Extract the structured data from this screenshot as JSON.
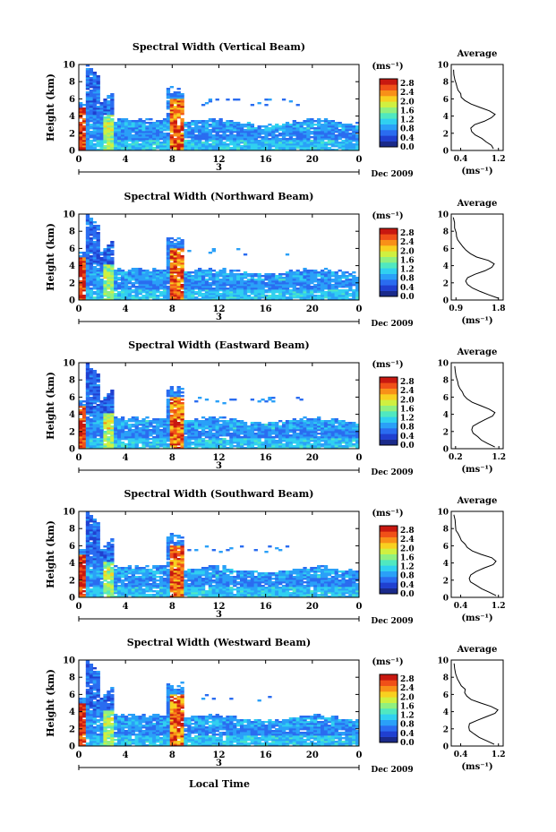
{
  "figure": {
    "xlabel": "Local Time",
    "date_label": "Dec 2009",
    "day_label": "3",
    "ylabel": "Height (km)",
    "colorbar_unit": "(ms⁻¹)",
    "avg_title": "Average",
    "avg_xlabel": "(ms⁻¹)"
  },
  "chart_data": [
    {
      "type": "heatmap",
      "title": "Spectral Width (Vertical Beam)",
      "xlim": [
        0,
        24
      ],
      "ylim": [
        0,
        10
      ],
      "x_ticks": [
        "0",
        "4",
        "8",
        "12",
        "16",
        "20",
        "0"
      ],
      "y_ticks": [
        "0",
        "2",
        "4",
        "6",
        "8",
        "10"
      ],
      "colorbar": {
        "ticks": [
          "0.0",
          "0.4",
          "0.8",
          "1.2",
          "1.6",
          "2.0",
          "2.4",
          "2.8"
        ],
        "range": [
          0,
          3.0
        ]
      },
      "average": {
        "x_ticks": [
          "0.4",
          "1.2"
        ],
        "xlim": [
          0.2,
          1.3
        ],
        "y_ticks": [
          "0",
          "2",
          "4",
          "6",
          "8",
          "10"
        ],
        "profile": [
          [
            1.1,
            0.2
          ],
          [
            1.05,
            0.6
          ],
          [
            0.95,
            1.0
          ],
          [
            0.85,
            1.4
          ],
          [
            0.72,
            1.8
          ],
          [
            0.62,
            2.2
          ],
          [
            0.6,
            2.6
          ],
          [
            0.7,
            3.0
          ],
          [
            0.9,
            3.4
          ],
          [
            1.05,
            3.8
          ],
          [
            1.12,
            4.2
          ],
          [
            1.0,
            4.6
          ],
          [
            0.8,
            5.0
          ],
          [
            0.62,
            5.4
          ],
          [
            0.5,
            5.8
          ],
          [
            0.42,
            6.2
          ],
          [
            0.4,
            6.6
          ],
          [
            0.35,
            7.0
          ],
          [
            0.32,
            7.4
          ],
          [
            0.3,
            7.8
          ],
          [
            0.28,
            8.2
          ],
          [
            0.26,
            8.8
          ],
          [
            0.25,
            9.4
          ]
        ]
      }
    },
    {
      "type": "heatmap",
      "title": "Spectral Width (Northward Beam)",
      "xlim": [
        0,
        24
      ],
      "ylim": [
        0,
        10
      ],
      "x_ticks": [
        "0",
        "4",
        "8",
        "12",
        "16",
        "20",
        "0"
      ],
      "y_ticks": [
        "0",
        "2",
        "4",
        "6",
        "8",
        "10"
      ],
      "colorbar": {
        "ticks": [
          "0.0",
          "0.4",
          "0.8",
          "1.2",
          "1.6",
          "2.0",
          "2.4",
          "2.8"
        ],
        "range": [
          0,
          3.0
        ]
      },
      "average": {
        "x_ticks": [
          "0.9",
          "1.8"
        ],
        "xlim": [
          0.8,
          1.9
        ],
        "y_ticks": [
          "0",
          "2",
          "4",
          "6",
          "8",
          "10"
        ],
        "profile": [
          [
            1.8,
            0.2
          ],
          [
            1.6,
            0.6
          ],
          [
            1.4,
            1.0
          ],
          [
            1.25,
            1.4
          ],
          [
            1.15,
            1.8
          ],
          [
            1.1,
            2.2
          ],
          [
            1.15,
            2.6
          ],
          [
            1.3,
            3.0
          ],
          [
            1.5,
            3.4
          ],
          [
            1.65,
            3.8
          ],
          [
            1.72,
            4.2
          ],
          [
            1.6,
            4.6
          ],
          [
            1.35,
            5.0
          ],
          [
            1.2,
            5.4
          ],
          [
            1.12,
            5.8
          ],
          [
            1.05,
            6.2
          ],
          [
            1.0,
            6.6
          ],
          [
            0.95,
            7.0
          ],
          [
            0.92,
            7.4
          ],
          [
            0.9,
            7.8
          ],
          [
            0.88,
            8.4
          ],
          [
            0.86,
            9.0
          ],
          [
            0.85,
            9.6
          ]
        ]
      }
    },
    {
      "type": "heatmap",
      "title": "Spectral Width (Eastward Beam)",
      "xlim": [
        0,
        24
      ],
      "ylim": [
        0,
        10
      ],
      "x_ticks": [
        "0",
        "4",
        "8",
        "12",
        "16",
        "20",
        "0"
      ],
      "y_ticks": [
        "0",
        "2",
        "4",
        "6",
        "8",
        "10"
      ],
      "colorbar": {
        "ticks": [
          "0.0",
          "0.4",
          "0.8",
          "1.2",
          "1.6",
          "2.0",
          "2.4",
          "2.8"
        ],
        "range": [
          0,
          3.0
        ]
      },
      "average": {
        "x_ticks": [
          "0.2",
          "1.2"
        ],
        "xlim": [
          0.1,
          1.3
        ],
        "y_ticks": [
          "0",
          "2",
          "4",
          "6",
          "8",
          "10"
        ],
        "profile": [
          [
            1.1,
            0.2
          ],
          [
            0.95,
            0.6
          ],
          [
            0.8,
            1.0
          ],
          [
            0.7,
            1.4
          ],
          [
            0.62,
            1.8
          ],
          [
            0.58,
            2.2
          ],
          [
            0.6,
            2.6
          ],
          [
            0.72,
            3.0
          ],
          [
            0.9,
            3.4
          ],
          [
            1.05,
            3.8
          ],
          [
            1.1,
            4.2
          ],
          [
            0.98,
            4.6
          ],
          [
            0.78,
            5.0
          ],
          [
            0.6,
            5.4
          ],
          [
            0.48,
            5.8
          ],
          [
            0.4,
            6.2
          ],
          [
            0.36,
            6.6
          ],
          [
            0.3,
            7.0
          ],
          [
            0.27,
            7.4
          ],
          [
            0.24,
            7.8
          ],
          [
            0.22,
            8.4
          ],
          [
            0.2,
            9.0
          ],
          [
            0.19,
            9.6
          ]
        ]
      }
    },
    {
      "type": "heatmap",
      "title": "Spectral Width (Southward Beam)",
      "xlim": [
        0,
        24
      ],
      "ylim": [
        0,
        10
      ],
      "x_ticks": [
        "0",
        "4",
        "8",
        "12",
        "16",
        "20",
        "0"
      ],
      "y_ticks": [
        "0",
        "2",
        "4",
        "6",
        "8",
        "10"
      ],
      "colorbar": {
        "ticks": [
          "0.0",
          "0.4",
          "0.8",
          "1.2",
          "1.6",
          "2.0",
          "2.4",
          "2.8"
        ],
        "range": [
          0,
          3.0
        ]
      },
      "average": {
        "x_ticks": [
          "0.4",
          "1.2"
        ],
        "xlim": [
          0.2,
          1.3
        ],
        "y_ticks": [
          "0",
          "2",
          "4",
          "6",
          "8",
          "10"
        ],
        "profile": [
          [
            1.15,
            0.2
          ],
          [
            1.0,
            0.6
          ],
          [
            0.85,
            1.0
          ],
          [
            0.72,
            1.4
          ],
          [
            0.62,
            1.8
          ],
          [
            0.58,
            2.2
          ],
          [
            0.6,
            2.6
          ],
          [
            0.72,
            3.0
          ],
          [
            0.9,
            3.4
          ],
          [
            1.08,
            3.8
          ],
          [
            1.15,
            4.2
          ],
          [
            1.05,
            4.6
          ],
          [
            0.82,
            5.0
          ],
          [
            0.65,
            5.4
          ],
          [
            0.55,
            5.8
          ],
          [
            0.48,
            6.2
          ],
          [
            0.42,
            6.6
          ],
          [
            0.38,
            7.0
          ],
          [
            0.34,
            7.4
          ],
          [
            0.31,
            7.8
          ],
          [
            0.29,
            8.4
          ],
          [
            0.27,
            9.0
          ],
          [
            0.26,
            9.6
          ]
        ]
      }
    },
    {
      "type": "heatmap",
      "title": "Spectral Width (Westward Beam)",
      "xlim": [
        0,
        24
      ],
      "ylim": [
        0,
        10
      ],
      "x_ticks": [
        "0",
        "4",
        "8",
        "12",
        "16",
        "20",
        "0"
      ],
      "y_ticks": [
        "0",
        "2",
        "4",
        "6",
        "8",
        "10"
      ],
      "colorbar": {
        "ticks": [
          "0.0",
          "0.4",
          "0.8",
          "1.2",
          "1.6",
          "2.0",
          "2.4",
          "2.8"
        ],
        "range": [
          0,
          3.0
        ]
      },
      "average": {
        "x_ticks": [
          "0.4",
          "1.2"
        ],
        "xlim": [
          0.2,
          1.3
        ],
        "y_ticks": [
          "0",
          "2",
          "4",
          "6",
          "8",
          "10"
        ],
        "profile": [
          [
            1.1,
            0.2
          ],
          [
            0.95,
            0.6
          ],
          [
            0.8,
            1.0
          ],
          [
            0.68,
            1.4
          ],
          [
            0.6,
            1.8
          ],
          [
            0.56,
            2.2
          ],
          [
            0.6,
            2.6
          ],
          [
            0.75,
            3.0
          ],
          [
            0.95,
            3.4
          ],
          [
            1.12,
            3.8
          ],
          [
            1.18,
            4.2
          ],
          [
            1.05,
            4.6
          ],
          [
            0.82,
            5.0
          ],
          [
            0.62,
            5.4
          ],
          [
            0.52,
            5.8
          ],
          [
            0.48,
            6.2
          ],
          [
            0.5,
            6.6
          ],
          [
            0.42,
            7.0
          ],
          [
            0.36,
            7.4
          ],
          [
            0.32,
            7.8
          ],
          [
            0.3,
            8.4
          ],
          [
            0.28,
            9.0
          ],
          [
            0.27,
            9.6
          ]
        ]
      }
    }
  ]
}
